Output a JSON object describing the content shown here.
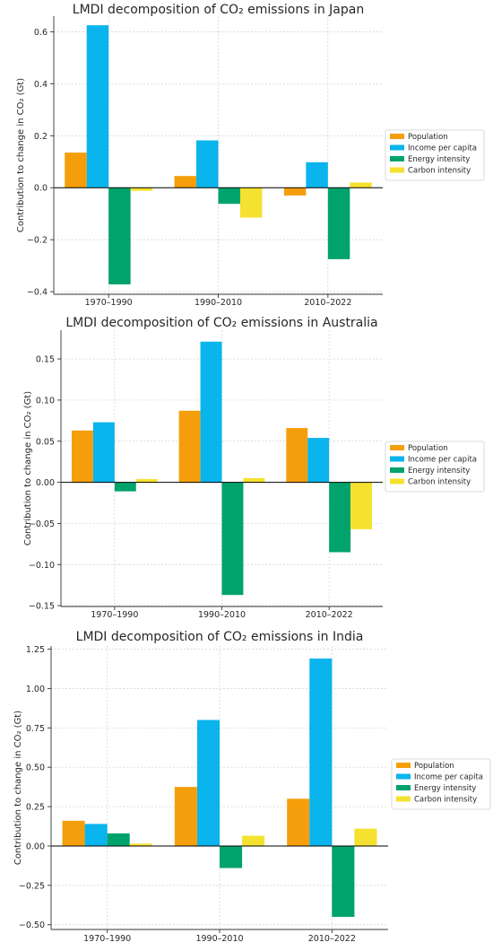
{
  "colors": {
    "Population": "#f59e0b",
    "Income per capita": "#0ab4ec",
    "Energy intensity": "#00a36c",
    "Carbon intensity": "#f5e130"
  },
  "chart_data": [
    {
      "type": "bar",
      "title": "LMDI decomposition of CO₂ emissions in Japan",
      "ylabel": "Contribution to change in CO₂ (Gt)",
      "categories": [
        "1970–1990",
        "1990–2010",
        "2010–2022"
      ],
      "series": [
        {
          "name": "Population",
          "values": [
            0.135,
            0.045,
            -0.03
          ]
        },
        {
          "name": "Income per capita",
          "values": [
            0.625,
            0.182,
            0.098
          ]
        },
        {
          "name": "Energy intensity",
          "values": [
            -0.372,
            -0.062,
            -0.275
          ]
        },
        {
          "name": "Carbon intensity",
          "values": [
            -0.012,
            -0.115,
            0.02
          ]
        }
      ],
      "ylim": [
        -0.41,
        0.66
      ],
      "yticks": [
        0.6,
        0.4,
        0.2,
        0.0,
        -0.2,
        -0.4
      ],
      "ytick_labels": [
        "0.6",
        "0.4",
        "0.2",
        "0.0",
        "−0.2",
        "−0.4"
      ],
      "grid": true,
      "legend": "right"
    },
    {
      "type": "bar",
      "title": "LMDI decomposition of CO₂ emissions in Australia",
      "ylabel": "Contribution to change in CO₂ (Gt)",
      "categories": [
        "1970–1990",
        "1990–2010",
        "2010–2022"
      ],
      "series": [
        {
          "name": "Population",
          "values": [
            0.063,
            0.087,
            0.066
          ]
        },
        {
          "name": "Income per capita",
          "values": [
            0.073,
            0.171,
            0.054
          ]
        },
        {
          "name": "Energy intensity",
          "values": [
            -0.011,
            -0.137,
            -0.085
          ]
        },
        {
          "name": "Carbon intensity",
          "values": [
            0.004,
            0.005,
            -0.057
          ]
        }
      ],
      "ylim": [
        -0.151,
        0.185
      ],
      "yticks": [
        0.15,
        0.1,
        0.05,
        0.0,
        -0.05,
        -0.1,
        -0.15
      ],
      "ytick_labels": [
        "0.15",
        "0.10",
        "0.05",
        "0.00",
        "−0.05",
        "−0.10",
        "−0.15"
      ],
      "grid": true,
      "legend": "right"
    },
    {
      "type": "bar",
      "title": "LMDI decomposition of CO₂ emissions in India",
      "ylabel": "Contribution to change in CO₂ (Gt)",
      "categories": [
        "1970–1990",
        "1990–2010",
        "2010–2022"
      ],
      "series": [
        {
          "name": "Population",
          "values": [
            0.16,
            0.375,
            0.3
          ]
        },
        {
          "name": "Income per capita",
          "values": [
            0.14,
            0.8,
            1.19
          ]
        },
        {
          "name": "Energy intensity",
          "values": [
            0.08,
            -0.14,
            -0.45
          ]
        },
        {
          "name": "Carbon intensity",
          "values": [
            0.015,
            0.065,
            0.11
          ]
        }
      ],
      "ylim": [
        -0.53,
        1.27
      ],
      "yticks": [
        1.25,
        1.0,
        0.75,
        0.5,
        0.25,
        0.0,
        -0.25,
        -0.5
      ],
      "ytick_labels": [
        "1.25",
        "1.00",
        "0.75",
        "0.50",
        "0.25",
        "0.00",
        "−0.25",
        "−0.50"
      ],
      "grid": true,
      "legend": "right"
    }
  ]
}
